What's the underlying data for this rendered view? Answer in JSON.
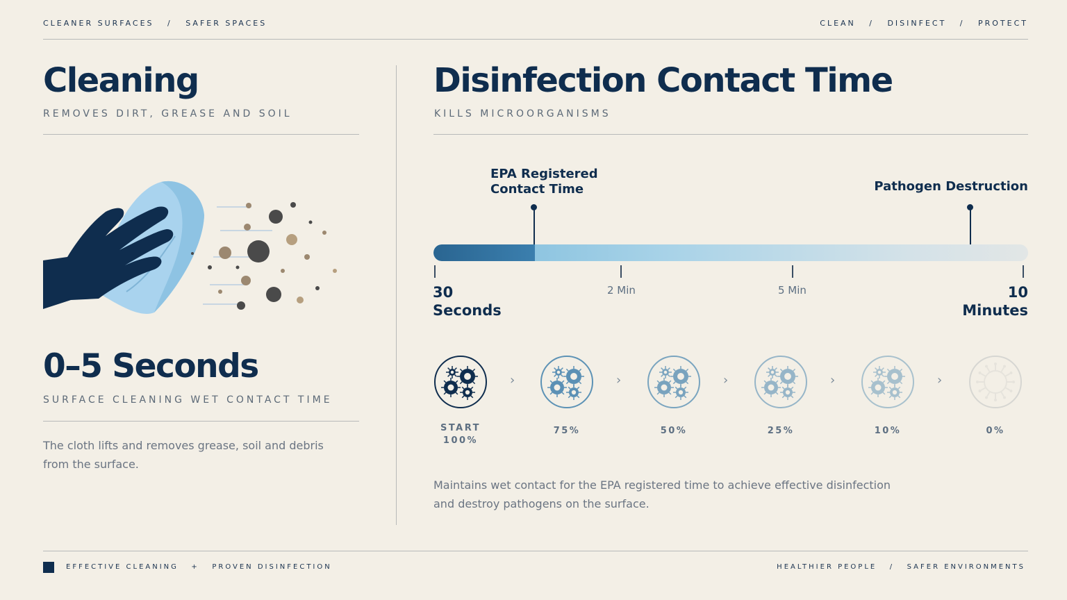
{
  "header": {
    "left": "CLEANER SURFACES   /   SAFER SPACES",
    "right": "CLEAN   /   DISINFECT   /   PROTECT"
  },
  "cleaning": {
    "title": "Cleaning",
    "subtitle": "REMOVES DIRT, GREASE AND SOIL",
    "time_title": "0–5 Seconds",
    "time_subtitle": "SURFACE CLEANING WET CONTACT TIME",
    "description_line1": "The cloth lifts and removes grease, soil and debris",
    "description_line2": "from the surface.",
    "icons": [
      "hand-icon",
      "cloth-icon",
      "debris-icon"
    ]
  },
  "disinfection": {
    "title": "Disinfection Contact Time",
    "subtitle": "KILLS MICROORGANISMS",
    "marker_epa_line1": "EPA Registered",
    "marker_epa_line2": "Contact Time",
    "marker_destruction": "Pathogen Destruction",
    "timeline": {
      "start_num": "30",
      "start_unit": "Seconds",
      "tick2": "2 Min",
      "tick3": "5 Min",
      "end_num": "10",
      "end_unit": "Minutes",
      "epa_fill_fraction": 0.17
    },
    "stages": [
      {
        "line1": "START",
        "line2": "100%",
        "level": 1.0
      },
      {
        "line1": "75%",
        "line2": "",
        "level": 0.75
      },
      {
        "line1": "50%",
        "line2": "",
        "level": 0.5
      },
      {
        "line1": "25%",
        "line2": "",
        "level": 0.25
      },
      {
        "line1": "10%",
        "line2": "",
        "level": 0.1
      },
      {
        "line1": "0%",
        "line2": "",
        "level": 0.0
      }
    ],
    "description_line1": "Maintains wet contact for the EPA registered time to achieve effective disinfection",
    "description_line2": "and destroy pathogens on the surface."
  },
  "footer": {
    "left": "EFFECTIVE CLEANING   +   PROVEN DISINFECTION",
    "right": "HEALTHIER PEOPLE   /   SAFER ENVIRONMENTS"
  },
  "colors": {
    "background": "#f3efe6",
    "navy": "#0f2d4e",
    "bar_dark": "#2a6591",
    "bar_light": "#a9d3e8"
  }
}
